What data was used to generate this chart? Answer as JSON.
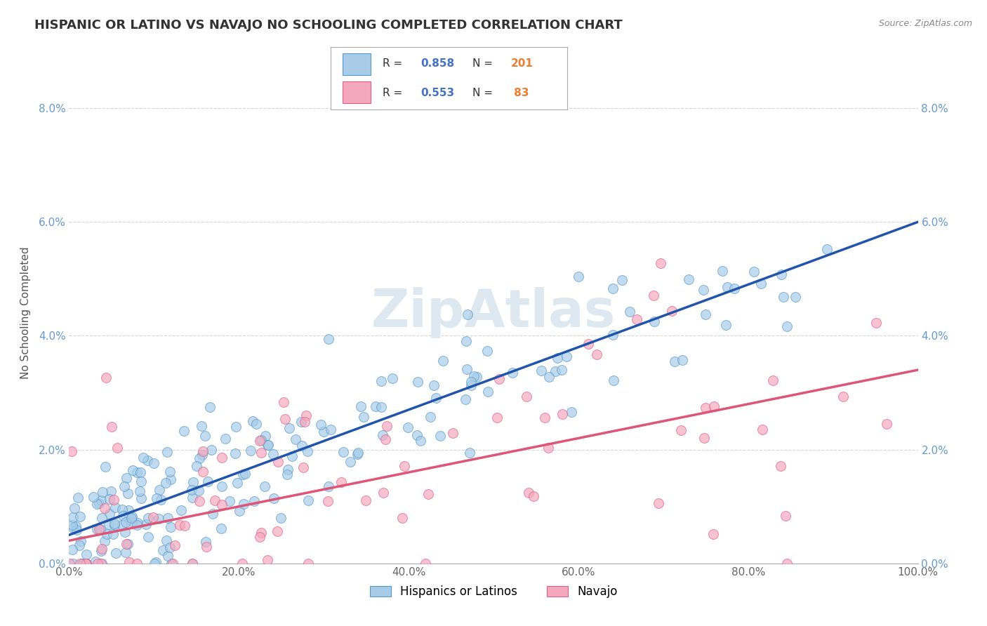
{
  "title": "HISPANIC OR LATINO VS NAVAJO NO SCHOOLING COMPLETED CORRELATION CHART",
  "source": "Source: ZipAtlas.com",
  "ylabel": "No Schooling Completed",
  "xlim": [
    0,
    1.0
  ],
  "ylim": [
    0,
    0.088
  ],
  "xticks": [
    0.0,
    0.2,
    0.4,
    0.6,
    0.8,
    1.0
  ],
  "xticklabels": [
    "0.0%",
    "20.0%",
    "40.0%",
    "60.0%",
    "80.0%",
    "100.0%"
  ],
  "yticks": [
    0.0,
    0.02,
    0.04,
    0.06,
    0.08
  ],
  "yticklabels": [
    "0.0%",
    "2.0%",
    "4.0%",
    "6.0%",
    "8.0%"
  ],
  "blue_R": 0.858,
  "blue_N": 201,
  "pink_R": 0.553,
  "pink_N": 83,
  "blue_color": "#a8cce8",
  "pink_color": "#f4a8c0",
  "blue_edge_color": "#5599cc",
  "pink_edge_color": "#e06080",
  "blue_line_color": "#2255aa",
  "pink_line_color": "#dd5577",
  "legend_R_color": "#4472c4",
  "legend_N_color": "#ed7d31",
  "background_color": "#ffffff",
  "grid_color": "#cccccc",
  "title_color": "#333333",
  "watermark_color": "#dde8f0",
  "blue_line_start_y": 0.005,
  "blue_line_end_y": 0.06,
  "pink_line_start_y": 0.004,
  "pink_line_end_y": 0.034
}
